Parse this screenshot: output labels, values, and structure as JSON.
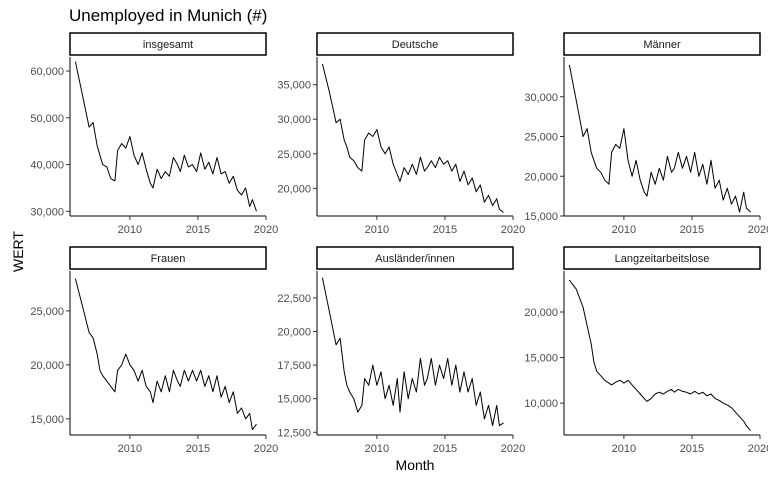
{
  "chart_data": {
    "type": "line",
    "title": "Unemployed in Munich (#)",
    "xlabel": "Month",
    "ylabel": "WERT",
    "x_ticks": [
      2010,
      2015,
      2020
    ],
    "facets": [
      {
        "name": "insgesamt",
        "ylim": [
          29000,
          63000
        ],
        "y_ticks": [
          30000,
          40000,
          50000,
          60000
        ],
        "y_tick_labels": [
          "30,000",
          "40,000",
          "50,000",
          "60,000"
        ],
        "x": [
          2006.0,
          2006.5,
          2007.0,
          2007.3,
          2007.6,
          2007.8,
          2008.0,
          2008.3,
          2008.6,
          2008.9,
          2009.1,
          2009.4,
          2009.7,
          2010.0,
          2010.3,
          2010.6,
          2010.9,
          2011.2,
          2011.5,
          2011.7,
          2012.0,
          2012.3,
          2012.6,
          2012.9,
          2013.2,
          2013.5,
          2013.7,
          2014.0,
          2014.3,
          2014.6,
          2014.9,
          2015.2,
          2015.5,
          2015.8,
          2016.1,
          2016.4,
          2016.7,
          2017.0,
          2017.3,
          2017.6,
          2017.9,
          2018.2,
          2018.5,
          2018.8,
          2019.0,
          2019.3
        ],
        "y": [
          62000,
          55000,
          48000,
          49000,
          44000,
          42000,
          40000,
          39500,
          37000,
          36500,
          43000,
          44500,
          43500,
          46000,
          42000,
          40000,
          42500,
          39000,
          36000,
          35000,
          39000,
          37000,
          38500,
          37500,
          41500,
          40000,
          38500,
          42000,
          39500,
          40000,
          38500,
          42500,
          39000,
          40500,
          38000,
          41500,
          38000,
          38500,
          36000,
          37500,
          34500,
          33500,
          35000,
          31000,
          32500,
          30000
        ]
      },
      {
        "name": "Deutsche",
        "ylim": [
          16000,
          39000
        ],
        "y_ticks": [
          20000,
          25000,
          30000,
          35000
        ],
        "y_tick_labels": [
          "20,000",
          "25,000",
          "30,000",
          "35,000"
        ],
        "x": [
          2006.0,
          2006.5,
          2007.0,
          2007.3,
          2007.6,
          2007.8,
          2008.0,
          2008.3,
          2008.6,
          2008.9,
          2009.1,
          2009.4,
          2009.7,
          2010.0,
          2010.3,
          2010.6,
          2010.9,
          2011.2,
          2011.5,
          2011.7,
          2012.0,
          2012.3,
          2012.6,
          2012.9,
          2013.2,
          2013.5,
          2013.7,
          2014.0,
          2014.3,
          2014.6,
          2014.9,
          2015.2,
          2015.5,
          2015.8,
          2016.1,
          2016.4,
          2016.7,
          2017.0,
          2017.3,
          2017.6,
          2017.9,
          2018.2,
          2018.5,
          2018.8,
          2019.0,
          2019.3
        ],
        "y": [
          38000,
          34000,
          29500,
          30000,
          27000,
          26000,
          24500,
          24000,
          23000,
          22500,
          27000,
          28000,
          27500,
          28500,
          26000,
          25000,
          26000,
          23500,
          22000,
          21000,
          23000,
          22000,
          23500,
          22000,
          24500,
          22500,
          23000,
          24000,
          23000,
          24500,
          23500,
          24000,
          22500,
          23500,
          21000,
          22500,
          20500,
          21500,
          19500,
          20500,
          18000,
          19000,
          17500,
          18500,
          17000,
          16500
        ]
      },
      {
        "name": "Männer",
        "ylim": [
          15000,
          35000
        ],
        "y_ticks": [
          15000,
          20000,
          25000,
          30000
        ],
        "y_tick_labels": [
          "15,000",
          "20,000",
          "25,000",
          "30,000"
        ],
        "x": [
          2006.0,
          2006.5,
          2007.0,
          2007.3,
          2007.6,
          2007.8,
          2008.0,
          2008.3,
          2008.6,
          2008.9,
          2009.1,
          2009.4,
          2009.7,
          2010.0,
          2010.3,
          2010.6,
          2010.9,
          2011.2,
          2011.5,
          2011.7,
          2012.0,
          2012.3,
          2012.6,
          2012.9,
          2013.2,
          2013.5,
          2013.7,
          2014.0,
          2014.3,
          2014.6,
          2014.9,
          2015.2,
          2015.5,
          2015.8,
          2016.1,
          2016.4,
          2016.7,
          2017.0,
          2017.3,
          2017.6,
          2017.9,
          2018.2,
          2018.5,
          2018.8,
          2019.0,
          2019.3
        ],
        "y": [
          34000,
          29500,
          25000,
          26000,
          23000,
          22000,
          21000,
          20500,
          19500,
          19000,
          23000,
          24000,
          23500,
          26000,
          22000,
          20000,
          22000,
          19500,
          18000,
          17500,
          20500,
          19000,
          21000,
          19500,
          22500,
          20500,
          21000,
          23000,
          21000,
          22500,
          20500,
          23000,
          20000,
          21500,
          19000,
          22000,
          18500,
          19500,
          17000,
          18500,
          16500,
          17500,
          15500,
          18000,
          16000,
          15500
        ]
      },
      {
        "name": "Frauen",
        "ylim": [
          13500,
          28700
        ],
        "y_ticks": [
          15000,
          20000,
          25000
        ],
        "y_tick_labels": [
          "15,000",
          "20,000",
          "25,000"
        ],
        "x": [
          2006.0,
          2006.5,
          2007.0,
          2007.3,
          2007.6,
          2007.8,
          2008.0,
          2008.3,
          2008.6,
          2008.9,
          2009.1,
          2009.4,
          2009.7,
          2010.0,
          2010.3,
          2010.6,
          2010.9,
          2011.2,
          2011.5,
          2011.7,
          2012.0,
          2012.3,
          2012.6,
          2012.9,
          2013.2,
          2013.5,
          2013.7,
          2014.0,
          2014.3,
          2014.6,
          2014.9,
          2015.2,
          2015.5,
          2015.8,
          2016.1,
          2016.4,
          2016.7,
          2017.0,
          2017.3,
          2017.6,
          2017.9,
          2018.2,
          2018.5,
          2018.8,
          2019.0,
          2019.3
        ],
        "y": [
          28000,
          25500,
          23000,
          22500,
          21000,
          19500,
          19000,
          18500,
          18000,
          17500,
          19500,
          20000,
          21000,
          20000,
          19500,
          18500,
          19500,
          18000,
          17500,
          16500,
          18500,
          17500,
          19000,
          17500,
          19500,
          18500,
          18000,
          19500,
          18500,
          19500,
          18500,
          19500,
          18000,
          19000,
          17500,
          19000,
          17000,
          18000,
          16500,
          17500,
          15500,
          16000,
          15000,
          15500,
          14000,
          14500
        ]
      },
      {
        "name": "Ausländer/innen",
        "ylim": [
          12300,
          24500
        ],
        "y_ticks": [
          12500,
          15000,
          17500,
          20000,
          22500
        ],
        "y_tick_labels": [
          "12,500",
          "15,000",
          "17,500",
          "20,000",
          "22,500"
        ],
        "x": [
          2006.0,
          2006.5,
          2007.0,
          2007.3,
          2007.6,
          2007.8,
          2008.0,
          2008.3,
          2008.6,
          2008.9,
          2009.1,
          2009.4,
          2009.7,
          2010.0,
          2010.3,
          2010.6,
          2010.9,
          2011.2,
          2011.5,
          2011.7,
          2012.0,
          2012.3,
          2012.6,
          2012.9,
          2013.2,
          2013.5,
          2013.7,
          2014.0,
          2014.3,
          2014.6,
          2014.9,
          2015.2,
          2015.5,
          2015.8,
          2016.1,
          2016.4,
          2016.7,
          2017.0,
          2017.3,
          2017.6,
          2017.9,
          2018.2,
          2018.5,
          2018.8,
          2019.0,
          2019.3
        ],
        "y": [
          24000,
          21500,
          19000,
          19500,
          17000,
          16000,
          15500,
          15000,
          14000,
          14500,
          16500,
          16000,
          17500,
          16000,
          17000,
          15000,
          16000,
          14500,
          16500,
          14000,
          17000,
          15000,
          16500,
          15500,
          18000,
          16000,
          16500,
          18000,
          16000,
          17500,
          16500,
          18000,
          16000,
          17500,
          15500,
          17000,
          15500,
          16500,
          14500,
          15500,
          13500,
          14500,
          13000,
          14500,
          13000,
          13200
        ]
      },
      {
        "name": "Langzeitarbeitslose",
        "ylim": [
          6500,
          24500
        ],
        "y_ticks": [
          10000,
          15000,
          20000
        ],
        "y_tick_labels": [
          "10,000",
          "15,000",
          "20,000"
        ],
        "x": [
          2006.0,
          2006.5,
          2007.0,
          2007.3,
          2007.6,
          2007.8,
          2008.0,
          2008.3,
          2008.6,
          2008.9,
          2009.1,
          2009.4,
          2009.7,
          2010.0,
          2010.3,
          2010.6,
          2010.9,
          2011.2,
          2011.5,
          2011.7,
          2012.0,
          2012.3,
          2012.6,
          2012.9,
          2013.2,
          2013.5,
          2013.7,
          2014.0,
          2014.3,
          2014.6,
          2014.9,
          2015.2,
          2015.5,
          2015.8,
          2016.1,
          2016.4,
          2016.7,
          2017.0,
          2017.3,
          2017.6,
          2017.9,
          2018.2,
          2018.5,
          2018.8,
          2019.0,
          2019.3
        ],
        "y": [
          23500,
          22500,
          20500,
          18500,
          16500,
          14500,
          13500,
          13000,
          12500,
          12200,
          12000,
          12300,
          12500,
          12200,
          12500,
          12000,
          11500,
          11000,
          10500,
          10200,
          10500,
          11000,
          11200,
          11000,
          11300,
          11500,
          11200,
          11500,
          11300,
          11200,
          11000,
          11300,
          11000,
          11200,
          10800,
          11000,
          10500,
          10300,
          10000,
          9800,
          9500,
          9000,
          8500,
          8000,
          7500,
          7000
        ]
      }
    ]
  }
}
